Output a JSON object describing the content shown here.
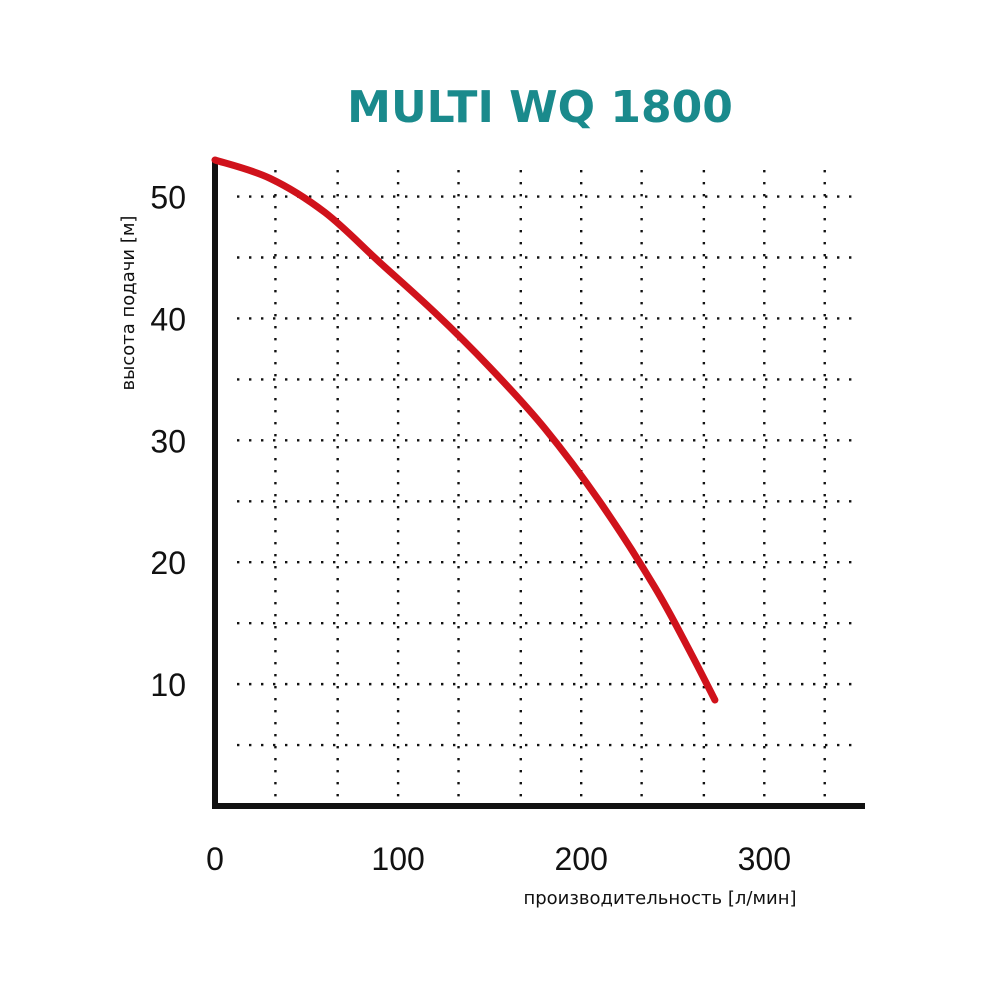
{
  "chart_data": {
    "type": "line",
    "title": "MULTI WQ 1800",
    "xlabel": "производительность [л/мин]",
    "ylabel": "высота подачи [м]",
    "xlim": [
      0,
      355
    ],
    "ylim": [
      0,
      53
    ],
    "x_ticks": [
      0,
      100,
      200,
      300
    ],
    "y_ticks": [
      10,
      20,
      30,
      40,
      50
    ],
    "x_grid": [
      33,
      67,
      100,
      133,
      167,
      200,
      233,
      267,
      300,
      333
    ],
    "y_grid": [
      5,
      10,
      15,
      20,
      25,
      30,
      35,
      40,
      45,
      50
    ],
    "grid": true,
    "series": [
      {
        "color": "#d0121b",
        "x": [
          0,
          30,
          60,
          90,
          120,
          150,
          180,
          210,
          240,
          260,
          273
        ],
        "y": [
          53,
          51.5,
          48.7,
          44.6,
          40.5,
          36,
          31,
          25,
          18,
          12.5,
          8.7
        ]
      }
    ]
  },
  "colors": {
    "title": "#1a8a8c",
    "curve": "#d0121b",
    "axis": "#111111"
  }
}
